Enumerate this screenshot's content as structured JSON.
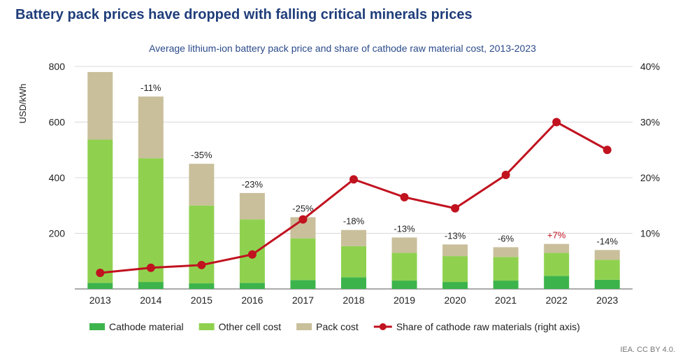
{
  "title": "Battery pack prices have dropped with falling critical minerals prices",
  "footer": "IEA. CC BY 4.0.",
  "chart_data": {
    "type": "bar",
    "stacked": true,
    "title": "Average lithium-ion battery pack price and share of cathode raw material cost, 2013-2023",
    "ylabel": "USD/kWh",
    "ylim": [
      0,
      800
    ],
    "yticks": [
      200,
      400,
      600,
      800
    ],
    "y2lim": [
      0,
      40
    ],
    "y2ticks": [
      "10%",
      "20%",
      "30%",
      "40%"
    ],
    "y2tick_values": [
      10,
      20,
      30,
      40
    ],
    "categories": [
      "2013",
      "2014",
      "2015",
      "2016",
      "2017",
      "2018",
      "2019",
      "2020",
      "2021",
      "2022",
      "2023"
    ],
    "series": [
      {
        "name": "Cathode material",
        "color": "#3cb44b",
        "values": [
          22,
          25,
          20,
          22,
          32,
          42,
          30,
          25,
          30,
          47,
          33
        ]
      },
      {
        "name": "Other cell cost",
        "color": "#8fd14f",
        "values": [
          515,
          445,
          280,
          228,
          150,
          112,
          100,
          93,
          85,
          83,
          72
        ]
      },
      {
        "name": "Pack cost",
        "color": "#c9bf9b",
        "values": [
          243,
          222,
          150,
          95,
          76,
          58,
          55,
          42,
          35,
          32,
          35
        ]
      }
    ],
    "line_series": {
      "name": "Share of cathode raw materials (right axis)",
      "color": "#c1121f",
      "axis": "right",
      "values": [
        2.9,
        3.8,
        4.3,
        6.2,
        12.5,
        19.7,
        16.5,
        14.5,
        20.5,
        30,
        25
      ]
    },
    "bar_labels": [
      "",
      "-11%",
      "-35%",
      "-23%",
      "-25%",
      "-18%",
      "-13%",
      "-13%",
      "-6%",
      "+7%",
      "-14%"
    ],
    "bar_label_colors": [
      "#222222",
      "#222222",
      "#222222",
      "#222222",
      "#222222",
      "#222222",
      "#222222",
      "#222222",
      "#222222",
      "#c1121f",
      "#222222"
    ],
    "grid": "horizontal",
    "legend_position": "bottom"
  }
}
